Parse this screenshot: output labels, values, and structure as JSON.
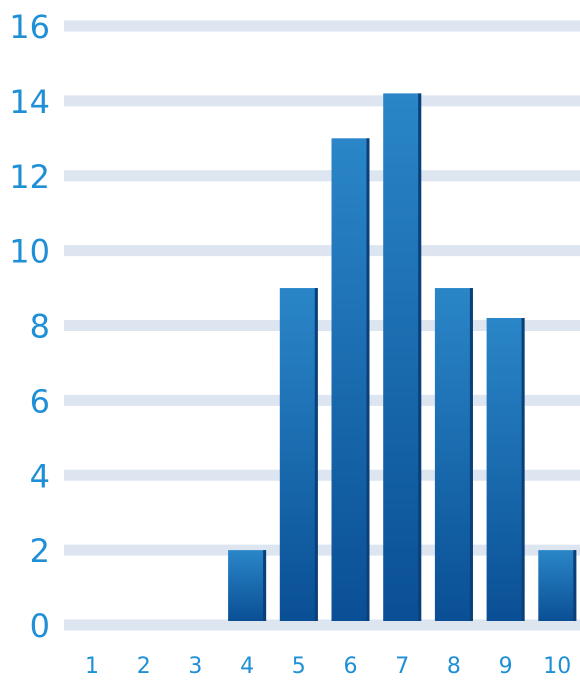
{
  "chart_data": {
    "type": "bar",
    "title": "",
    "xlabel": "",
    "ylabel": "",
    "categories": [
      "1",
      "2",
      "3",
      "4",
      "5",
      "6",
      "7",
      "8",
      "9",
      "10"
    ],
    "values": [
      0,
      0,
      0,
      2,
      9,
      13,
      14.2,
      9,
      8.2,
      2
    ],
    "ylim": [
      0,
      16
    ],
    "yticks": [
      "0",
      "2",
      "4",
      "6",
      "8",
      "10",
      "12",
      "14",
      "16"
    ],
    "grid": true,
    "colors": {
      "bar_top": "#2a86c8",
      "bar_bottom": "#0a4f95",
      "bar_edge": "#0b3f77",
      "grid": "#dde5f1",
      "tick_text": "#1f8fd6"
    }
  }
}
